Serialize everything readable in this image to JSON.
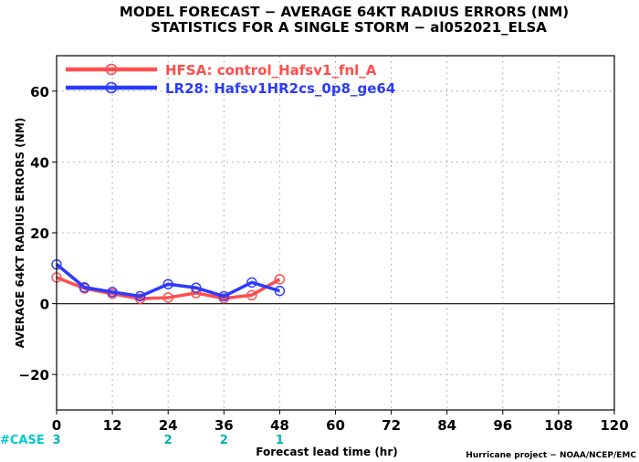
{
  "chart_data": {
    "type": "line",
    "title": "MODEL FORECAST − AVERAGE 64KT RADIUS ERRORS (NM)",
    "subtitle": "STATISTICS FOR A SINGLE STORM − al052021_ELSA",
    "xlabel": "Forecast lead time (hr)",
    "ylabel": "AVERAGE 64KT RADIUS ERRORS (NM)",
    "xlim": [
      0,
      120
    ],
    "ylim": [
      -30,
      70
    ],
    "xticks": [
      "0",
      "12",
      "24",
      "36",
      "48",
      "60",
      "72",
      "84",
      "96",
      "108",
      "120"
    ],
    "yticks": [
      "60",
      "40",
      "20",
      "0",
      "−20"
    ],
    "grid": true,
    "legend_position": "top-left",
    "zero_line": true,
    "series": [
      {
        "name": "HFSA: control_Hafsv1_fnl_A",
        "color": "#ff4d4d",
        "x": [
          0,
          6,
          12,
          18,
          24,
          30,
          36,
          42,
          48
        ],
        "y": [
          7.4,
          4.3,
          2.8,
          1.4,
          1.7,
          3.0,
          1.5,
          2.4,
          6.9
        ]
      },
      {
        "name": "LR28: Hafsv1HR2cs_0p8_ge64",
        "color": "#2b3bff",
        "x": [
          0,
          6,
          12,
          18,
          24,
          30,
          36,
          42,
          48
        ],
        "y": [
          11.1,
          4.6,
          3.3,
          2.1,
          5.5,
          4.5,
          2.1,
          6.0,
          3.6
        ]
      }
    ],
    "case_label": "#CASE",
    "case_counts": [
      {
        "x": 0,
        "count": "3"
      },
      {
        "x": 24,
        "count": "2"
      },
      {
        "x": 36,
        "count": "2"
      },
      {
        "x": 48,
        "count": "1"
      }
    ],
    "case_colors": {
      "label": "#00c8d2",
      "count": "#00b0b8"
    }
  },
  "credit": "Hurricane project − NOAA/NCEP/EMC"
}
